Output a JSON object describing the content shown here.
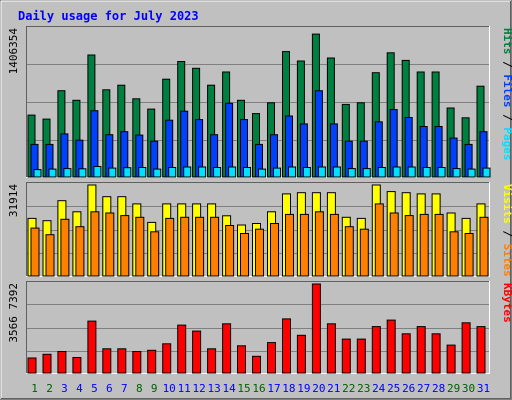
{
  "chart_data": {
    "type": "bar",
    "title": "Daily usage for July 2023",
    "categories": [
      "1",
      "2",
      "3",
      "4",
      "5",
      "6",
      "7",
      "8",
      "9",
      "10",
      "11",
      "12",
      "13",
      "14",
      "15",
      "16",
      "17",
      "18",
      "19",
      "20",
      "21",
      "22",
      "23",
      "24",
      "25",
      "26",
      "27",
      "28",
      "29",
      "30",
      "31"
    ],
    "weekend_days": [
      "1",
      "2",
      "8",
      "9",
      "15",
      "16",
      "22",
      "23",
      "29",
      "30"
    ],
    "panels": [
      {
        "id": "hits",
        "max_label": "1406354",
        "legend": [
          "Pages",
          "Files",
          "Hits"
        ],
        "ylim": [
          0,
          1406354
        ],
        "series": [
          {
            "name": "Hits",
            "color": "#008040",
            "values": [
              588000,
              550000,
              820000,
              729000,
              1159000,
              829000,
              872000,
              743000,
              645000,
              929000,
              1098000,
              1033000,
              872000,
              998000,
              729000,
              602000,
              705000,
              1192000,
              1102000,
              1358000,
              1131000,
              690000,
              705000,
              991000,
              1180000,
              1108000,
              998000,
              998000,
              656000,
              563000,
              863000
            ]
          },
          {
            "name": "Files",
            "color": "#0040ff",
            "values": [
              310000,
              310000,
              410000,
              350000,
              630000,
              402000,
              430000,
              398000,
              340000,
              540000,
              625000,
              545000,
              402000,
              700000,
              545000,
              310000,
              402000,
              580000,
              505000,
              820000,
              505000,
              340000,
              340000,
              525000,
              640000,
              565000,
              480000,
              480000,
              370000,
              310000,
              430000
            ]
          },
          {
            "name": "Pages",
            "color": "#00e0ff",
            "values": [
              70000,
              75000,
              80000,
              78000,
              100000,
              85000,
              88000,
              90000,
              75000,
              90000,
              95000,
              95000,
              90000,
              95000,
              90000,
              75000,
              85000,
              95000,
              90000,
              95000,
              95000,
              80000,
              80000,
              90000,
              95000,
              95000,
              90000,
              90000,
              80000,
              75000,
              85000
            ]
          }
        ]
      },
      {
        "id": "visits",
        "max_label": "31914",
        "legend": [
          "Sites",
          "Visits"
        ],
        "ylim": [
          0,
          31914
        ],
        "series": [
          {
            "name": "Visits",
            "color": "#ffff00",
            "values": [
              20200,
              19400,
              26400,
              22500,
              31914,
              27800,
              27800,
              25300,
              18800,
              25300,
              25300,
              25300,
              25300,
              21100,
              17900,
              18400,
              22500,
              28800,
              29200,
              29200,
              29200,
              20600,
              20200,
              31900,
              29600,
              29200,
              28800,
              28800,
              22100,
              20200,
              25300
            ]
          },
          {
            "name": "Sites",
            "color": "#ff8000",
            "values": [
              16800,
              14500,
              19900,
              17300,
              22500,
              22100,
              21200,
              20600,
              15500,
              20200,
              20600,
              20600,
              20600,
              17700,
              14900,
              16400,
              18400,
              21600,
              21600,
              22500,
              21600,
              17300,
              16400,
              25300,
              22100,
              21200,
              21600,
              21600,
              15500,
              14900,
              20600
            ]
          }
        ]
      },
      {
        "id": "kbytes",
        "max_label": "3566 7392",
        "legend": [
          "KBytes"
        ],
        "ylim": [
          0,
          35667392
        ],
        "series": [
          {
            "name": "KBytes",
            "color": "#ff0000",
            "values": [
              6000000,
              7500000,
              8600000,
              6200000,
              20800000,
              9700000,
              9700000,
              8600000,
              9100000,
              11700000,
              19200000,
              16800000,
              9700000,
              19700000,
              10900000,
              6700000,
              12200000,
              21700000,
              15100000,
              35667392,
              19700000,
              13600000,
              13600000,
              18600000,
              21200000,
              15700000,
              18600000,
              15700000,
              11200000,
              20100000,
              18600000
            ]
          }
        ]
      }
    ]
  },
  "colors": {
    "title": "#0000ff",
    "panel_bg": "#c0c0c0",
    "gridline": "#808080",
    "weekday_label": "#0000ff",
    "weekend_label": "#006000"
  }
}
